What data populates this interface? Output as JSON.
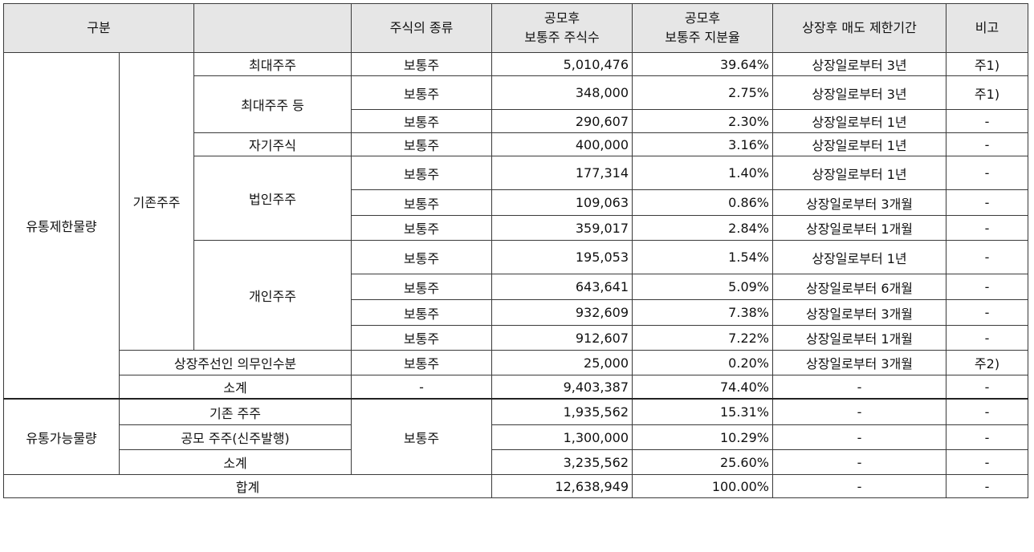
{
  "header": {
    "category": "구분",
    "blank": "",
    "share_type": "주식의 종류",
    "shares_line1": "공모후",
    "shares_line2": "보통주 주식수",
    "ratio_line1": "공모후",
    "ratio_line2": "보통주 지분율",
    "lockup": "상장후 매도 제한기간",
    "note": "비고"
  },
  "groups": {
    "restricted": "유통제한물량",
    "existing": "기존주주",
    "tradable": "유통가능물량"
  },
  "rows": [
    {
      "label": "최대주주",
      "type": "보통주",
      "shares": "5,010,476",
      "ratio": "39.64%",
      "lockup": "상장일로부터 3년",
      "note": "주1)"
    },
    {
      "label": "최대주주 등",
      "type": "보통주",
      "shares": "348,000",
      "ratio": "2.75%",
      "lockup": "상장일로부터 3년",
      "note": "주1)"
    },
    {
      "label": "",
      "type": "보통주",
      "shares": "290,607",
      "ratio": "2.30%",
      "lockup": "상장일로부터 1년",
      "note": "-"
    },
    {
      "label": "자기주식",
      "type": "보통주",
      "shares": "400,000",
      "ratio": "3.16%",
      "lockup": "상장일로부터 1년",
      "note": "-"
    },
    {
      "label": "법인주주",
      "type": "보통주",
      "shares": "177,314",
      "ratio": "1.40%",
      "lockup": "상장일로부터 1년",
      "note": "-"
    },
    {
      "label": "",
      "type": "보통주",
      "shares": "109,063",
      "ratio": "0.86%",
      "lockup": "상장일로부터 3개월",
      "note": "-"
    },
    {
      "label": "",
      "type": "보통주",
      "shares": "359,017",
      "ratio": "2.84%",
      "lockup": "상장일로부터 1개월",
      "note": "-"
    },
    {
      "label": "개인주주",
      "type": "보통주",
      "shares": "195,053",
      "ratio": "1.54%",
      "lockup": "상장일로부터 1년",
      "note": "-"
    },
    {
      "label": "",
      "type": "보통주",
      "shares": "643,641",
      "ratio": "5.09%",
      "lockup": "상장일로부터 6개월",
      "note": "-"
    },
    {
      "label": "",
      "type": "보통주",
      "shares": "932,609",
      "ratio": "7.38%",
      "lockup": "상장일로부터 3개월",
      "note": "-"
    },
    {
      "label": "",
      "type": "보통주",
      "shares": "912,607",
      "ratio": "7.22%",
      "lockup": "상장일로부터 1개월",
      "note": "-"
    },
    {
      "label": "상장주선인 의무인수분",
      "type": "보통주",
      "shares": "25,000",
      "ratio": "0.20%",
      "lockup": "상장일로부터 3개월",
      "note": "주2)"
    },
    {
      "label": "소계",
      "type": "-",
      "shares": "9,403,387",
      "ratio": "74.40%",
      "lockup": "-",
      "note": "-"
    },
    {
      "label": "기존 주주",
      "type": "보통주",
      "shares": "1,935,562",
      "ratio": "15.31%",
      "lockup": "-",
      "note": "-"
    },
    {
      "label": "공모 주주(신주발행)",
      "type": "",
      "shares": "1,300,000",
      "ratio": "10.29%",
      "lockup": "-",
      "note": "-"
    },
    {
      "label": "소계",
      "type": "",
      "shares": "3,235,562",
      "ratio": "25.60%",
      "lockup": "-",
      "note": "-"
    },
    {
      "label": "합계",
      "type": "",
      "shares": "12,638,949",
      "ratio": "100.00%",
      "lockup": "-",
      "note": "-"
    }
  ]
}
